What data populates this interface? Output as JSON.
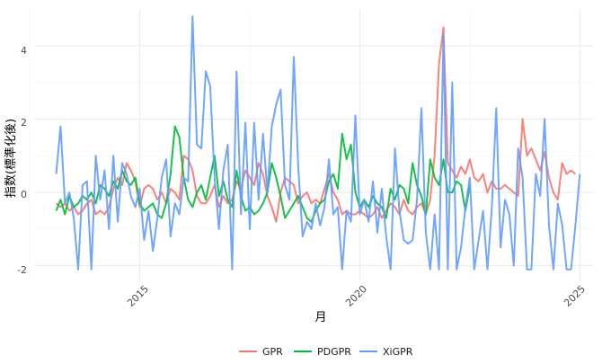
{
  "chart_data": {
    "type": "line",
    "xlabel": "月",
    "ylabel": "指数(標準化後)",
    "x_ticks": [
      "2015",
      "2020",
      "2025"
    ],
    "y_ticks": [
      "-2",
      "0",
      "2",
      "4"
    ],
    "xlim": [
      2012.6,
      2025.3
    ],
    "ylim": [
      -2.4,
      5.0
    ],
    "grid": true,
    "legend_position": "bottom",
    "series": [
      {
        "name": "GPR",
        "color": "#F8766D",
        "x": [
          2013.1,
          2013.2,
          2013.3,
          2013.4,
          2013.5,
          2013.6,
          2013.7,
          2013.8,
          2013.9,
          2014.0,
          2014.1,
          2014.2,
          2014.3,
          2014.4,
          2014.5,
          2014.6,
          2014.7,
          2014.8,
          2014.9,
          2015.0,
          2015.1,
          2015.2,
          2015.3,
          2015.4,
          2015.5,
          2015.6,
          2015.7,
          2015.8,
          2015.9,
          2016.0,
          2016.1,
          2016.2,
          2016.3,
          2016.4,
          2016.5,
          2016.6,
          2016.7,
          2016.8,
          2016.9,
          2017.0,
          2017.1,
          2017.2,
          2017.3,
          2017.4,
          2017.5,
          2017.6,
          2017.7,
          2017.8,
          2017.9,
          2018.0,
          2018.1,
          2018.2,
          2018.3,
          2018.4,
          2018.5,
          2018.6,
          2018.7,
          2018.8,
          2018.9,
          2019.0,
          2019.1,
          2019.2,
          2019.3,
          2019.4,
          2019.5,
          2019.6,
          2019.7,
          2019.8,
          2019.9,
          2020.0,
          2020.1,
          2020.2,
          2020.3,
          2020.4,
          2020.5,
          2020.6,
          2020.7,
          2020.8,
          2020.9,
          2021.0,
          2021.1,
          2021.2,
          2021.3,
          2021.4,
          2021.5,
          2021.6,
          2021.7,
          2021.8,
          2021.9,
          2022.0,
          2022.1,
          2022.2,
          2022.3,
          2022.4,
          2022.5,
          2022.6,
          2022.7,
          2022.8,
          2022.9,
          2023.0,
          2023.1,
          2023.2,
          2023.3,
          2023.4,
          2023.5,
          2023.6,
          2023.7,
          2023.8,
          2023.9,
          2024.0,
          2024.1,
          2024.2,
          2024.3,
          2024.4,
          2024.5,
          2024.6,
          2024.7,
          2024.8,
          2024.9
        ],
        "values": [
          -0.3,
          -0.4,
          -0.3,
          -0.5,
          -0.4,
          -0.6,
          -0.5,
          -0.3,
          -0.2,
          -0.6,
          -0.5,
          -0.6,
          -0.4,
          0.1,
          0.4,
          0.2,
          0.8,
          0.6,
          0.3,
          -0.4,
          0.1,
          0.2,
          0.1,
          -0.2,
          0.0,
          -0.3,
          0.1,
          0.0,
          -0.2,
          1.0,
          0.9,
          0.6,
          -0.1,
          -0.3,
          -0.3,
          -0.1,
          0.2,
          -0.4,
          -0.1,
          -0.3,
          -0.2,
          0.3,
          0.1,
          0.6,
          0.4,
          0.2,
          0.8,
          0.5,
          -0.1,
          -0.4,
          -0.8,
          0.0,
          0.4,
          0.3,
          0.2,
          -0.3,
          -0.1,
          0.0,
          -0.3,
          -0.2,
          -0.3,
          0.1,
          0.5,
          0.0,
          -0.2,
          -0.6,
          -0.5,
          -0.6,
          -0.6,
          -0.5,
          -0.6,
          -0.7,
          -0.6,
          -0.4,
          -0.7,
          -0.5,
          -0.3,
          -0.4,
          -0.6,
          -0.2,
          -0.5,
          -0.6,
          -0.4,
          -0.3,
          -0.6,
          -0.2,
          1.0,
          3.5,
          4.5,
          0.8,
          0.6,
          0.4,
          0.7,
          0.5,
          0.9,
          0.4,
          0.3,
          0.5,
          0.0,
          0.3,
          0.1,
          0.1,
          0.2,
          0.1,
          0.0,
          -0.1,
          2.0,
          1.0,
          1.2,
          0.9,
          0.6,
          1.1,
          0.4,
          0.0,
          -0.2,
          0.8,
          0.5,
          0.6,
          0.5
        ],
        "width": 2
      },
      {
        "name": "PDGPR",
        "color": "#00BA38",
        "x": [
          2013.1,
          2013.2,
          2013.3,
          2013.4,
          2013.5,
          2013.6,
          2013.7,
          2013.8,
          2013.9,
          2014.0,
          2014.1,
          2014.2,
          2014.3,
          2014.4,
          2014.5,
          2014.6,
          2014.7,
          2014.8,
          2014.9,
          2015.0,
          2015.1,
          2015.2,
          2015.3,
          2015.4,
          2015.5,
          2015.6,
          2015.7,
          2015.8,
          2015.9,
          2016.0,
          2016.1,
          2016.2,
          2016.3,
          2016.4,
          2016.5,
          2016.6,
          2016.7,
          2016.8,
          2016.9,
          2017.0,
          2017.1,
          2017.2,
          2017.3,
          2017.4,
          2017.5,
          2017.6,
          2017.7,
          2017.8,
          2017.9,
          2018.0,
          2018.1,
          2018.2,
          2018.3,
          2018.4,
          2018.5,
          2018.6,
          2018.7,
          2018.8,
          2018.9,
          2019.0,
          2019.1,
          2019.2,
          2019.3,
          2019.4,
          2019.5,
          2019.6,
          2019.7,
          2019.8,
          2019.9,
          2020.0,
          2020.1,
          2020.2,
          2020.3,
          2020.4,
          2020.5,
          2020.6,
          2020.7,
          2020.8,
          2020.9,
          2021.0,
          2021.1,
          2021.2,
          2021.3,
          2021.4,
          2021.5,
          2021.6,
          2021.7,
          2021.8,
          2021.9,
          2022.0,
          2022.1,
          2022.2,
          2022.3,
          2022.4,
          2022.5
        ],
        "values": [
          -0.5,
          -0.2,
          -0.6,
          -0.1,
          -0.4,
          -0.3,
          -0.1,
          -0.2,
          0.0,
          -0.3,
          0.2,
          0.1,
          -0.1,
          0.3,
          0.1,
          0.6,
          0.3,
          0.2,
          0.4,
          -0.3,
          -0.5,
          -0.4,
          -0.3,
          -0.6,
          -0.7,
          -0.3,
          0.5,
          1.8,
          1.5,
          0.4,
          -0.2,
          -0.4,
          0.0,
          0.2,
          -0.2,
          0.4,
          1.0,
          -0.1,
          0.3,
          -0.2,
          -0.4,
          0.6,
          -0.1,
          -0.5,
          -0.4,
          -0.6,
          -0.5,
          -0.3,
          0.0,
          0.8,
          0.4,
          -0.1,
          -0.7,
          -0.5,
          -0.3,
          -0.1,
          -0.4,
          -0.7,
          -0.8,
          -0.5,
          -0.3,
          -0.2,
          0.3,
          0.5,
          0.1,
          1.6,
          0.9,
          1.3,
          0.0,
          -0.4,
          -0.2,
          -0.4,
          -0.1,
          -0.3,
          -0.4,
          -0.7,
          0.1,
          -0.2,
          0.2,
          0.1,
          -0.3,
          0.8,
          0.2,
          -0.1,
          -0.6,
          0.9,
          0.4,
          0.2,
          0.9,
          0.0,
          0.0,
          0.3,
          0.2,
          -0.5,
          0.2
        ],
        "width": 2
      },
      {
        "name": "XiGPR",
        "color": "#619CFF",
        "x": [
          2013.1,
          2013.2,
          2013.3,
          2013.4,
          2013.5,
          2013.6,
          2013.7,
          2013.8,
          2013.9,
          2014.0,
          2014.1,
          2014.2,
          2014.3,
          2014.4,
          2014.5,
          2014.6,
          2014.7,
          2014.8,
          2014.9,
          2015.0,
          2015.1,
          2015.2,
          2015.3,
          2015.4,
          2015.5,
          2015.6,
          2015.7,
          2015.8,
          2015.9,
          2016.0,
          2016.1,
          2016.2,
          2016.3,
          2016.4,
          2016.5,
          2016.6,
          2016.7,
          2016.8,
          2016.9,
          2017.0,
          2017.1,
          2017.2,
          2017.3,
          2017.4,
          2017.5,
          2017.6,
          2017.7,
          2017.8,
          2017.9,
          2018.0,
          2018.1,
          2018.2,
          2018.3,
          2018.4,
          2018.5,
          2018.6,
          2018.7,
          2018.8,
          2018.9,
          2019.0,
          2019.1,
          2019.2,
          2019.3,
          2019.4,
          2019.5,
          2019.6,
          2019.7,
          2019.8,
          2019.9,
          2020.0,
          2020.1,
          2020.2,
          2020.3,
          2020.4,
          2020.5,
          2020.6,
          2020.7,
          2020.8,
          2020.9,
          2021.0,
          2021.1,
          2021.2,
          2021.3,
          2021.4,
          2021.5,
          2021.6,
          2021.7,
          2021.8,
          2021.9,
          2022.0,
          2022.1,
          2022.2,
          2022.3,
          2022.4,
          2022.5,
          2022.6,
          2022.7,
          2022.8,
          2022.9,
          2023.0,
          2023.1,
          2023.2,
          2023.3,
          2023.4,
          2023.5,
          2023.6,
          2023.7,
          2023.8,
          2023.9,
          2024.0,
          2024.1,
          2024.2,
          2024.3,
          2024.4,
          2024.5,
          2024.6,
          2024.7,
          2024.8,
          2024.9,
          2025.0
        ],
        "values": [
          0.5,
          1.8,
          -0.3,
          0.0,
          -0.7,
          -2.1,
          0.2,
          0.3,
          -2.1,
          1.0,
          -0.2,
          0.6,
          -1.0,
          1.0,
          -0.8,
          0.8,
          0.5,
          -0.1,
          -0.4,
          0.1,
          -1.3,
          -0.5,
          -1.6,
          -0.7,
          0.4,
          0.9,
          -1.2,
          -0.3,
          -0.6,
          0.4,
          0.3,
          4.8,
          1.3,
          1.2,
          3.3,
          2.9,
          0.4,
          -1.0,
          0.6,
          1.3,
          -2.1,
          3.3,
          -0.6,
          1.9,
          -1.0,
          1.9,
          -0.2,
          1.6,
          0.0,
          1.8,
          2.4,
          2.8,
          0.2,
          -0.2,
          3.7,
          0.7,
          -1.2,
          -0.8,
          -1.0,
          -0.3,
          -0.9,
          -0.4,
          0.9,
          -0.6,
          -0.4,
          -2.1,
          -0.5,
          -0.8,
          2.1,
          -0.6,
          -0.2,
          -0.8,
          0.3,
          -1.1,
          0.1,
          -1.2,
          -2.1,
          1.2,
          -0.5,
          -1.3,
          -1.4,
          -1.3,
          -0.2,
          2.3,
          -1.1,
          -2.1,
          -0.6,
          -2.1,
          4.3,
          -2.1,
          3.0,
          -2.1,
          -1.5,
          -0.4,
          0.4,
          -2.1,
          -1.3,
          -0.5,
          -2.1,
          -0.4,
          2.3,
          -1.5,
          -0.2,
          -0.6,
          -2.0,
          1.2,
          0.4,
          -2.1,
          -2.1,
          0.5,
          -0.1,
          2.0,
          -0.9,
          -2.1,
          -0.3,
          -0.9,
          -2.1,
          -2.1,
          -0.9,
          0.5
        ],
        "width": 2
      }
    ]
  }
}
